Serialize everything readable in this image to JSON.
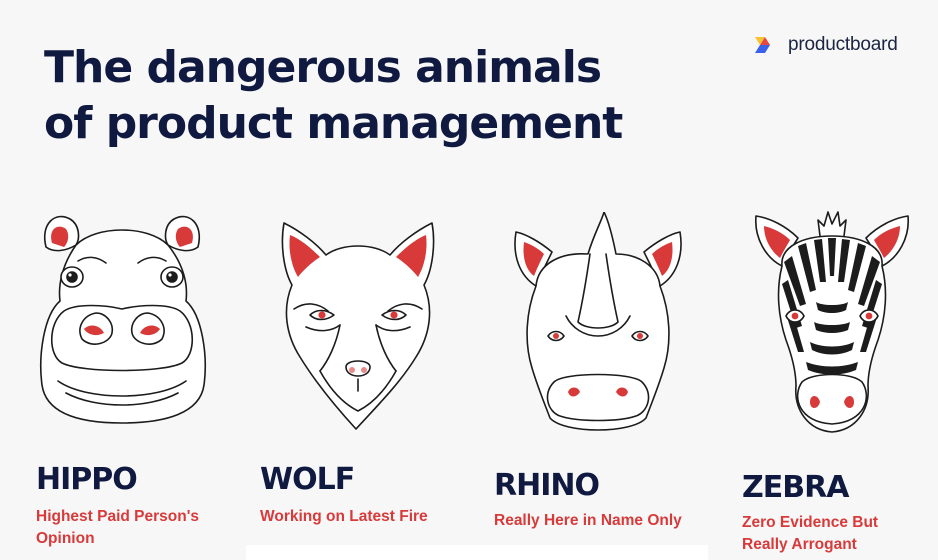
{
  "title": {
    "line1": "The dangerous animals",
    "line2": "of product management"
  },
  "brand": {
    "name": "productboard",
    "logo_icon": "productboard-logo-icon",
    "colors": {
      "yellow": "#f5c431",
      "red": "#e8483f",
      "blue": "#3a62e8"
    }
  },
  "colors": {
    "title": "#101a40",
    "accent_red": "#d83a3a",
    "line": "#1c1c1c"
  },
  "animals": [
    {
      "name": "HIPPO",
      "desc_line1": "Highest Paid Person's",
      "desc_line2": "Opinion",
      "icon": "hippo-face-icon"
    },
    {
      "name": "WOLF",
      "desc_line1": "Working on Latest Fire",
      "desc_line2": "",
      "icon": "wolf-face-icon"
    },
    {
      "name": "RHINO",
      "desc_line1": "Really Here in Name Only",
      "desc_line2": "",
      "icon": "rhino-face-icon"
    },
    {
      "name": "ZEBRA",
      "desc_line1": "Zero Evidence But",
      "desc_line2": "Really Arrogant",
      "icon": "zebra-face-icon"
    }
  ]
}
